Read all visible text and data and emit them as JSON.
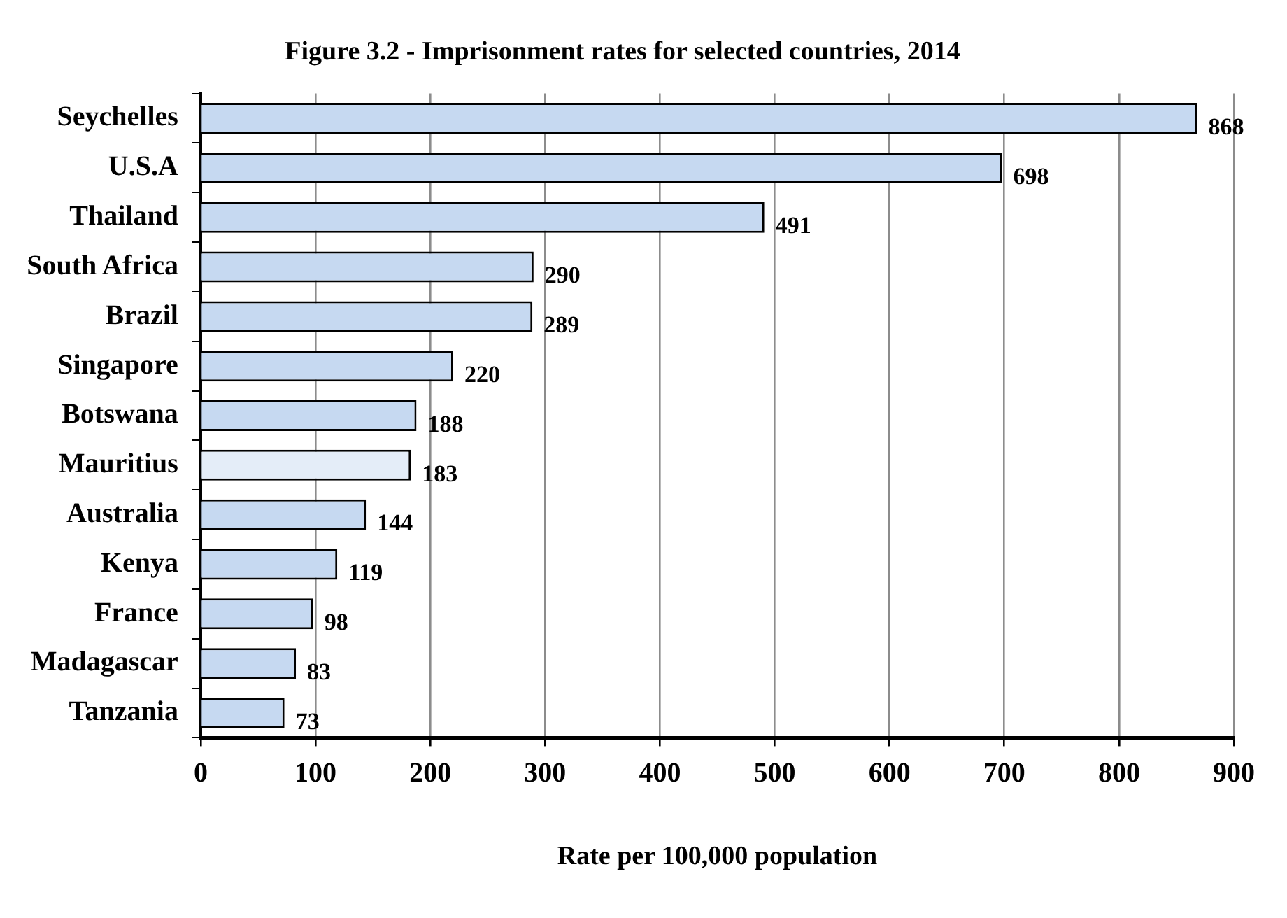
{
  "chart_data": {
    "type": "bar",
    "orientation": "horizontal",
    "title": "Figure 3.2 - Imprisonment rates for selected countries, 2014",
    "xlabel": "Rate per 100,000 population",
    "categories": [
      "Seychelles",
      "U.S.A",
      "Thailand",
      "South Africa",
      "Brazil",
      "Singapore",
      "Botswana",
      "Mauritius",
      "Australia",
      "Kenya",
      "France",
      "Madagascar",
      "Tanzania"
    ],
    "values": [
      868,
      698,
      491,
      290,
      289,
      220,
      188,
      183,
      144,
      119,
      98,
      83,
      73
    ],
    "colors": [
      "#c6d9f1",
      "#c6d9f1",
      "#c6d9f1",
      "#c6d9f1",
      "#c6d9f1",
      "#c6d9f1",
      "#c6d9f1",
      "#e4edf8",
      "#c6d9f1",
      "#c6d9f1",
      "#c6d9f1",
      "#c6d9f1",
      "#c6d9f1"
    ],
    "xlim": [
      0,
      900
    ],
    "xticks": [
      0,
      100,
      200,
      300,
      400,
      500,
      600,
      700,
      800,
      900
    ],
    "grid": "x",
    "data_labels": true,
    "legend": false
  }
}
